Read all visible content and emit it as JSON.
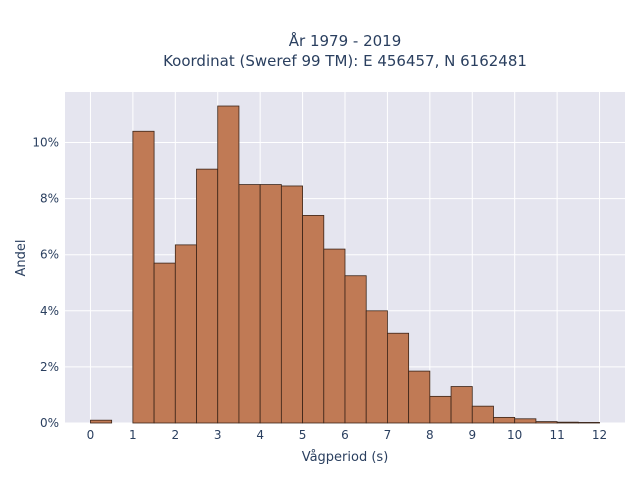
{
  "chart_data": {
    "type": "bar",
    "title_line1": "År 1979 - 2019",
    "title_line2": "Koordinat (Sweref 99 TM): E 456457, N 6162481",
    "xlabel": "Vågperiod (s)",
    "ylabel": "Andel",
    "bin_width": 0.5,
    "bin_starts": [
      0,
      1,
      1.5,
      2,
      2.5,
      3,
      3.5,
      4,
      4.5,
      5,
      5.5,
      6,
      6.5,
      7,
      7.5,
      8,
      8.5,
      9,
      9.5,
      10,
      10.5,
      11,
      11.5
    ],
    "values": [
      0.1,
      10.4,
      5.7,
      6.35,
      9.05,
      11.3,
      8.5,
      8.5,
      8.45,
      7.4,
      6.2,
      5.25,
      4.0,
      3.2,
      1.85,
      0.95,
      1.3,
      0.6,
      0.2,
      0.15,
      0.05,
      0.03,
      0.02
    ],
    "xlim": [
      -0.6,
      12.6
    ],
    "ylim": [
      0,
      11.8
    ],
    "x_ticks": [
      0,
      1,
      2,
      3,
      4,
      5,
      6,
      7,
      8,
      9,
      10,
      11,
      12
    ],
    "x_tick_labels": [
      "0",
      "1",
      "2",
      "3",
      "4",
      "5",
      "6",
      "7",
      "8",
      "9",
      "10",
      "11",
      "12"
    ],
    "y_ticks": [
      0,
      2,
      4,
      6,
      8,
      10
    ],
    "y_tick_labels": [
      "0%",
      "2%",
      "4%",
      "6%",
      "8%",
      "10%"
    ],
    "grid": true,
    "bar_color": "#c07a55",
    "bar_edge_color": "#3b2418",
    "plot_bg": "#e5e5ef",
    "grid_color": "#ffffff"
  }
}
